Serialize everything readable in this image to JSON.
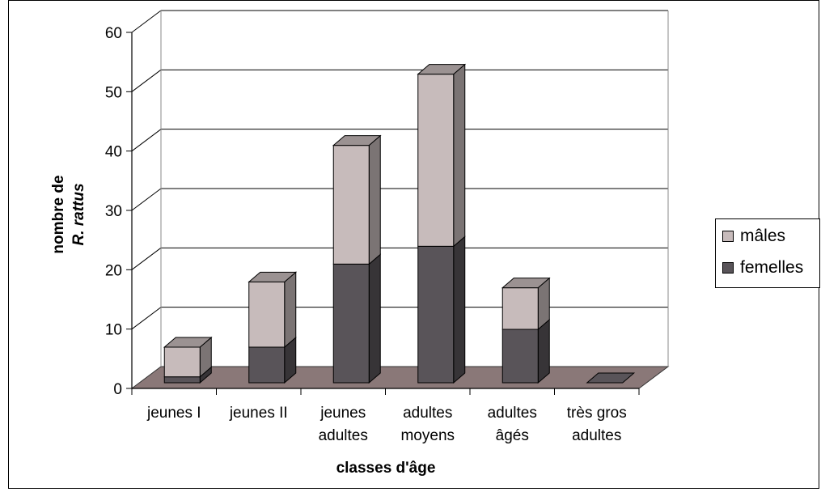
{
  "chart_data": {
    "type": "bar",
    "stacked": true,
    "three_d": true,
    "title": "",
    "xlabel": "classes d'âge",
    "ylabel_lines": [
      "nombre de",
      "R. rattus"
    ],
    "ylim": [
      0,
      60
    ],
    "yticks": [
      0,
      10,
      20,
      30,
      40,
      50,
      60
    ],
    "grid": true,
    "legend_position": "right",
    "categories": [
      [
        "jeunes I"
      ],
      [
        "jeunes II"
      ],
      [
        "jeunes",
        "adultes"
      ],
      [
        "adultes",
        "moyens"
      ],
      [
        "adultes",
        "âgés"
      ],
      [
        "très gros",
        "adultes"
      ]
    ],
    "series": [
      {
        "name": "femelles",
        "values": [
          1,
          6,
          20,
          23,
          9,
          0
        ],
        "color": "#595459"
      },
      {
        "name": "mâles",
        "values": [
          5,
          11,
          20,
          29,
          7,
          0
        ],
        "color": "#c7bbbb"
      }
    ],
    "legend_order": [
      "mâles",
      "femelles"
    ],
    "floor_color": "#8a7878"
  }
}
